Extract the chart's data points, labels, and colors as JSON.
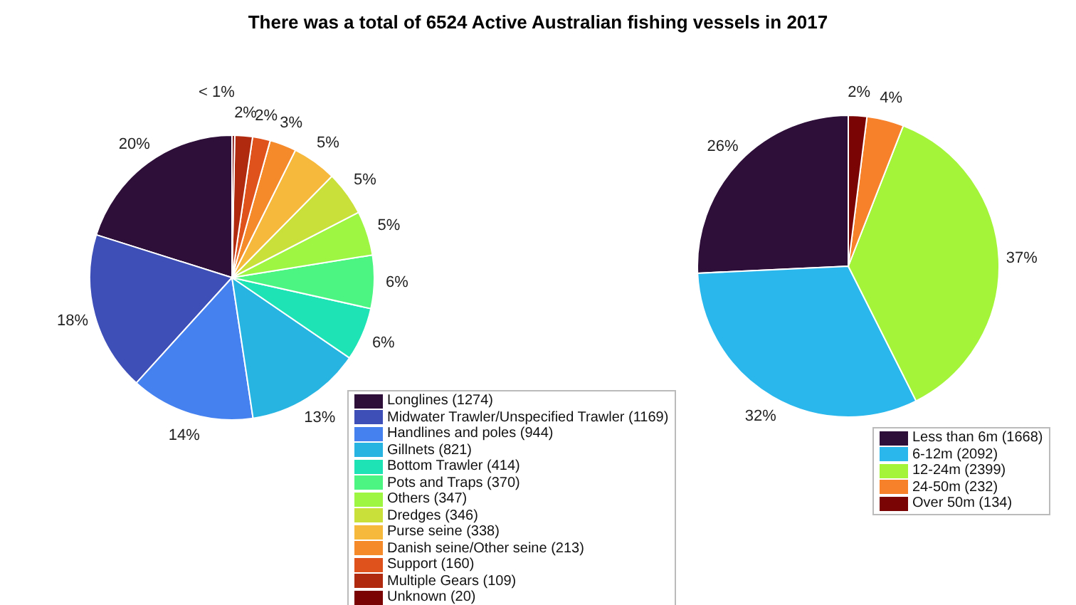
{
  "chart_data": [
    {
      "type": "pie",
      "title": "There was a total of 6524 Active Australian fishing vessels in 2017",
      "categories": [
        "Longlines (1274)",
        "Midwater Trawler/Unspecified Trawler (1169)",
        "Handlines and poles (944)",
        "Gillnets (821)",
        "Bottom Trawler (414)",
        "Pots and Traps (370)",
        "Others (347)",
        "Dredges (346)",
        "Purse seine (338)",
        "Danish seine/Other seine (213)",
        "Support (160)",
        "Multiple Gears (109)",
        "Unknown (20)"
      ],
      "values": [
        20,
        18,
        14,
        13,
        6,
        6,
        5,
        5,
        5,
        3,
        2,
        2,
        0.3
      ],
      "value_labels": [
        "20%",
        "18%",
        "14%",
        "13%",
        "6%",
        "6%",
        "5%",
        "5%",
        "5%",
        "3%",
        "2%",
        "2%",
        "< 1%"
      ],
      "colors": [
        "#2d0f3a",
        "#3f4fb8",
        "#4681f0",
        "#27b4e0",
        "#1ee3b5",
        "#4cf581",
        "#9ef542",
        "#c9e03a",
        "#f6b93b",
        "#f58a2a",
        "#e0521b",
        "#b02a0f",
        "#7a0403"
      ],
      "legend": "bottom right"
    },
    {
      "type": "pie",
      "categories": [
        "Less than 6m (1668)",
        "6-12m (2092)",
        "12-24m (2399)",
        "24-50m (232)",
        "Over 50m (134)"
      ],
      "values": [
        26,
        32,
        37,
        4,
        2
      ],
      "value_labels": [
        "26%",
        "32%",
        "37%",
        "4%",
        "2%"
      ],
      "colors": [
        "#2d0f3a",
        "#2ab8ec",
        "#a4f43a",
        "#f6812a",
        "#7a0403"
      ],
      "legend": "bottom right"
    }
  ]
}
